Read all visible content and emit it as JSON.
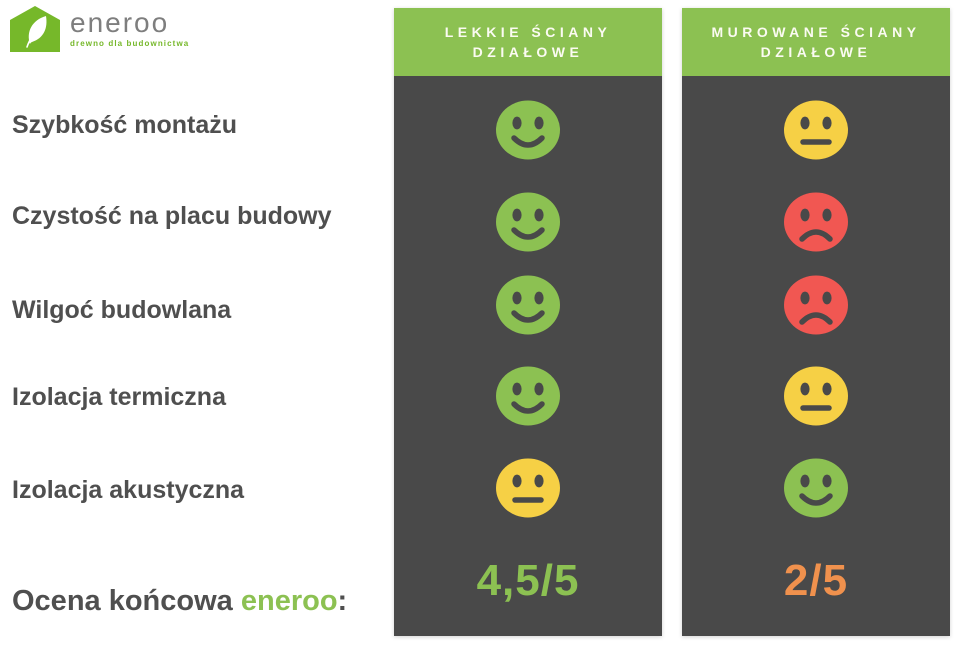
{
  "logo": {
    "brand": "eneroo",
    "tagline": "drewno dla budownictwa"
  },
  "rows": [
    "Szybkość montażu",
    "Czystość na placu budowy",
    "Wilgoć budowlana",
    "Izolacja termiczna",
    "Izolacja akustyczna"
  ],
  "final_row": {
    "prefix": "Ocena końcowa ",
    "brand": "eneroo",
    "suffix": ":"
  },
  "columns": [
    {
      "header_lines": [
        "LEKKIE ŚCIANY",
        "DZIAŁOWE"
      ],
      "ratings": [
        "happy",
        "happy",
        "happy",
        "happy",
        "neutral"
      ],
      "score": "4,5/5",
      "score_color": "#8cc152"
    },
    {
      "header_lines": [
        "MUROWANE ŚCIANY",
        "DZIAŁOWE"
      ],
      "ratings": [
        "neutral",
        "sad",
        "sad",
        "neutral",
        "happy"
      ],
      "score": "2/5",
      "score_color": "#f0914d"
    }
  ],
  "colors": {
    "header_green": "#8cc152",
    "panel_dark": "#494949",
    "face_happy": "#8cc152",
    "face_neutral": "#f6d045",
    "face_sad": "#f15752",
    "score_green": "#8cc152",
    "score_orange": "#f0914d",
    "label_text": "#4f4f4f",
    "logo_green": "#76b82a",
    "logo_gray": "#7e7e7e"
  },
  "chart_data": {
    "type": "table",
    "title": "Porównanie: lekkie ściany działowe vs murowane ściany działowe",
    "columns": [
      "LEKKIE ŚCIANY DZIAŁOWE",
      "MUROWANE ŚCIANY DZIAŁOWE"
    ],
    "rows": [
      "Szybkość montażu",
      "Czystość na placu budowy",
      "Wilgoć budowlana",
      "Izolacja termiczna",
      "Izolacja akustyczna"
    ],
    "cells": [
      [
        "happy",
        "neutral"
      ],
      [
        "happy",
        "sad"
      ],
      [
        "happy",
        "sad"
      ],
      [
        "happy",
        "neutral"
      ],
      [
        "neutral",
        "happy"
      ]
    ],
    "final_score_label": "Ocena końcowa eneroo:",
    "final_scores": [
      "4,5/5",
      "2/5"
    ],
    "legend_position": "none",
    "grid": false
  }
}
